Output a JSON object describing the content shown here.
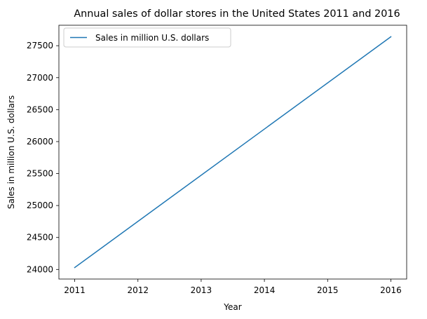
{
  "chart_data": {
    "type": "line",
    "title": "Annual sales of dollar stores in the United States 2011 and 2016",
    "xlabel": "Year",
    "ylabel": "Sales in million U.S. dollars",
    "x": [
      2011,
      2016
    ],
    "series": [
      {
        "name": "Sales in million U.S. dollars",
        "values": [
          24030,
          27640
        ],
        "color": "#1f77b4"
      }
    ],
    "xlim": [
      2010.75,
      2016.25
    ],
    "ylim": [
      23850,
      27820
    ],
    "xticks": [
      2011,
      2012,
      2013,
      2014,
      2015,
      2016
    ],
    "yticks": [
      24000,
      24500,
      25000,
      25500,
      26000,
      26500,
      27000,
      27500
    ],
    "grid": false,
    "legend_position": "top-left"
  }
}
